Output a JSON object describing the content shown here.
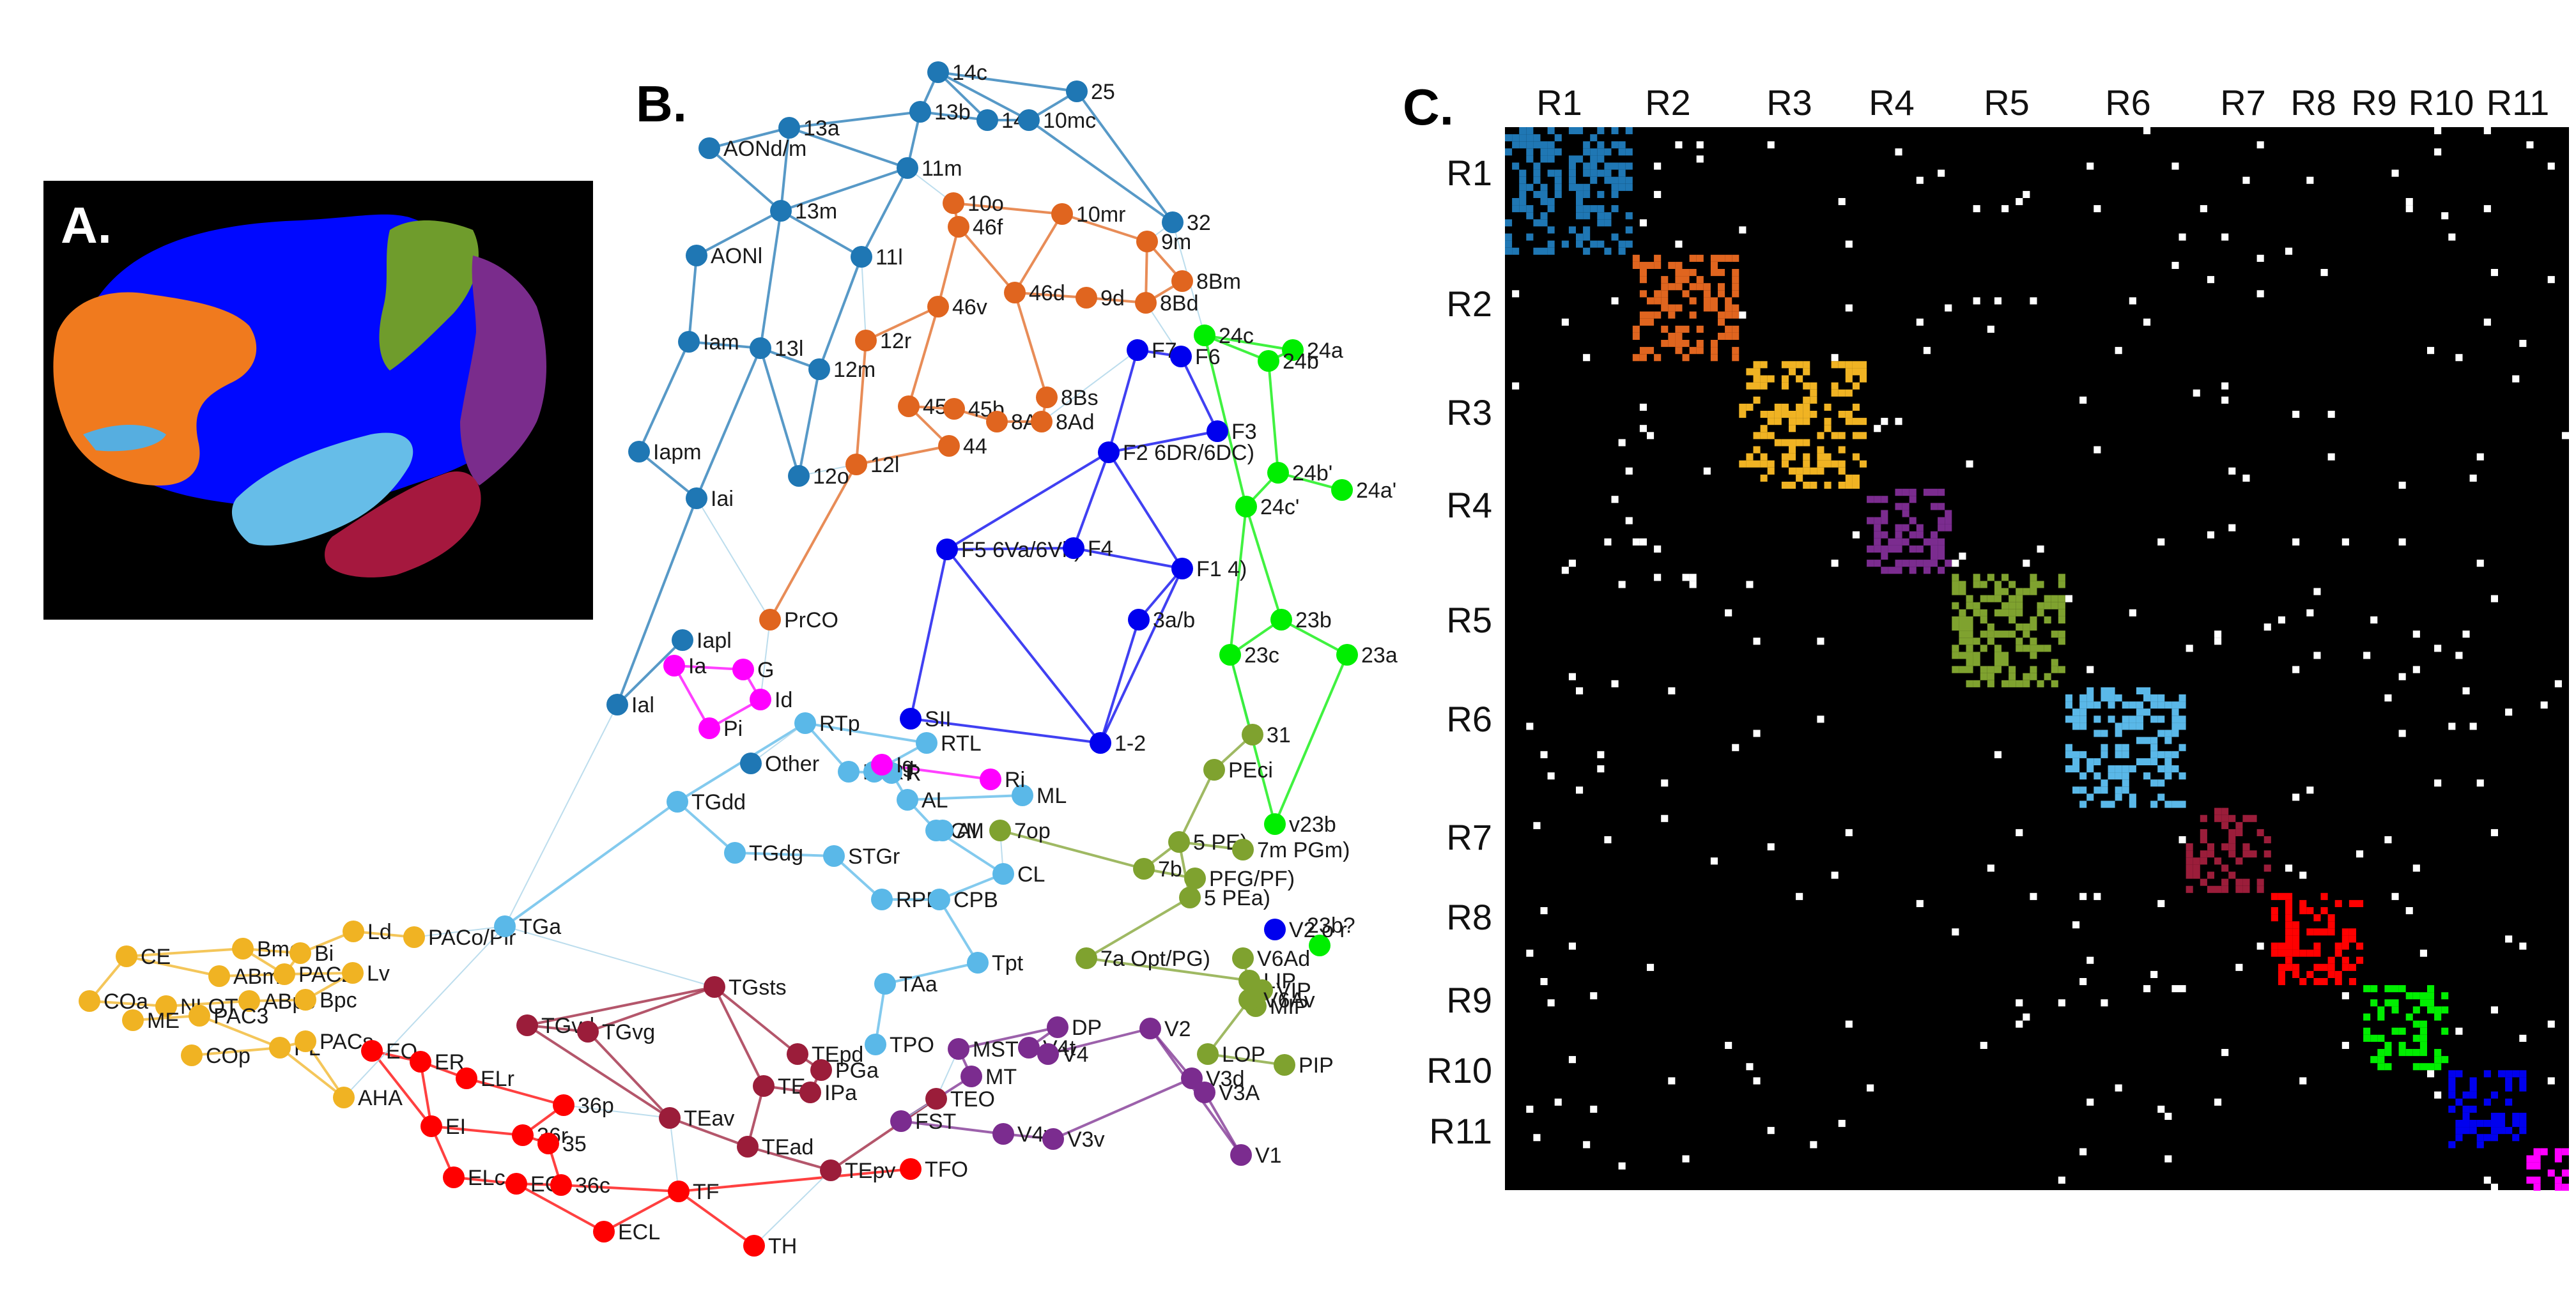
{
  "panels": {
    "a": "A.",
    "b": "B.",
    "c": "C."
  },
  "region_colors": {
    "R1": "#1f77b4",
    "R2": "#e0651f",
    "R3": "#f0b323",
    "R4": "#7b2c8f",
    "R5": "#7fa22f",
    "R6": "#5ab8e8",
    "R7": "#9b1d3a",
    "R8": "#ff0000",
    "R9": "#00ee00",
    "R10": "#0000ee",
    "R11": "#ff00ff"
  },
  "brain_colors": {
    "frontal": "#0008ff",
    "orbital": "#f07a1e",
    "motor": "#6f9c2c",
    "parietal": "#7a2c8c",
    "temporal": "#66bde8",
    "inferior_temporal": "#a5183e",
    "background": "#000000"
  },
  "network": {
    "nodes": [
      {
        "id": "14c",
        "r": "R1"
      },
      {
        "id": "25",
        "r": "R1"
      },
      {
        "id": "13a",
        "r": "R1"
      },
      {
        "id": "13b",
        "r": "R1"
      },
      {
        "id": "14r",
        "r": "R1"
      },
      {
        "id": "10mc",
        "r": "R1"
      },
      {
        "id": "AONd/m",
        "r": "R1"
      },
      {
        "id": "11m",
        "r": "R1"
      },
      {
        "id": "13m",
        "r": "R1"
      },
      {
        "id": "32",
        "r": "R1"
      },
      {
        "id": "AONl",
        "r": "R1"
      },
      {
        "id": "11l",
        "r": "R1"
      },
      {
        "id": "Iam",
        "r": "R1"
      },
      {
        "id": "13l",
        "r": "R1"
      },
      {
        "id": "12m",
        "r": "R1"
      },
      {
        "id": "Iapm",
        "r": "R1"
      },
      {
        "id": "12o",
        "r": "R1"
      },
      {
        "id": "Iai",
        "r": "R1"
      },
      {
        "id": "Iapl",
        "r": "R1"
      },
      {
        "id": "Ial",
        "r": "R1"
      },
      {
        "id": "Other",
        "r": "R1"
      },
      {
        "id": "10o",
        "r": "R2"
      },
      {
        "id": "46f",
        "r": "R2"
      },
      {
        "id": "10mr",
        "r": "R2"
      },
      {
        "id": "9m",
        "r": "R2"
      },
      {
        "id": "8Bm",
        "r": "R2"
      },
      {
        "id": "46v",
        "r": "R2"
      },
      {
        "id": "46d",
        "r": "R2"
      },
      {
        "id": "9d",
        "r": "R2"
      },
      {
        "id": "8Bd",
        "r": "R2"
      },
      {
        "id": "12r",
        "r": "R2"
      },
      {
        "id": "45a",
        "r": "R2"
      },
      {
        "id": "45b",
        "r": "R2"
      },
      {
        "id": "8Av",
        "r": "R2"
      },
      {
        "id": "8Bs",
        "r": "R2"
      },
      {
        "id": "8Ad",
        "r": "R2"
      },
      {
        "id": "44",
        "r": "R2"
      },
      {
        "id": "12l",
        "r": "R2"
      },
      {
        "id": "PrCO",
        "r": "R2"
      },
      {
        "id": "CE",
        "r": "R3"
      },
      {
        "id": "Bmc",
        "r": "R3"
      },
      {
        "id": "Bi",
        "r": "R3"
      },
      {
        "id": "Ld",
        "r": "R3"
      },
      {
        "id": "ABmc",
        "r": "R3"
      },
      {
        "id": "PAC2",
        "r": "R3"
      },
      {
        "id": "Lv",
        "r": "R3"
      },
      {
        "id": "COa",
        "r": "R3"
      },
      {
        "id": "NLOT",
        "r": "R3"
      },
      {
        "id": "ABpc",
        "r": "R3"
      },
      {
        "id": "Bpc",
        "r": "R3"
      },
      {
        "id": "ME",
        "r": "R3"
      },
      {
        "id": "PAC3",
        "r": "R3"
      },
      {
        "id": "PL",
        "r": "R3"
      },
      {
        "id": "PACs",
        "r": "R3"
      },
      {
        "id": "COp",
        "r": "R3"
      },
      {
        "id": "AHA",
        "r": "R3"
      },
      {
        "id": "PACo/Pir",
        "r": "R3"
      },
      {
        "id": "MST",
        "r": "R4"
      },
      {
        "id": "DP",
        "r": "R4"
      },
      {
        "id": "V4t",
        "r": "R4"
      },
      {
        "id": "V4",
        "r": "R4"
      },
      {
        "id": "MT",
        "r": "R4"
      },
      {
        "id": "V2",
        "r": "R4"
      },
      {
        "id": "V3d",
        "r": "R4"
      },
      {
        "id": "V3A",
        "r": "R4"
      },
      {
        "id": "FST",
        "r": "R4"
      },
      {
        "id": "V4v",
        "r": "R4"
      },
      {
        "id": "V3v",
        "r": "R4"
      },
      {
        "id": "V1",
        "r": "R4"
      },
      {
        "id": "7op",
        "r": "R5"
      },
      {
        "id": "7b",
        "r": "R5"
      },
      {
        "id": "PFG/PF)",
        "r": "R5"
      },
      {
        "id": "5 PE)",
        "r": "R5"
      },
      {
        "id": "7m PGm)",
        "r": "R5"
      },
      {
        "id": "5 PEa)",
        "r": "R5"
      },
      {
        "id": "PEci",
        "r": "R5"
      },
      {
        "id": "31",
        "r": "R5"
      },
      {
        "id": "7a Opt/PG)",
        "r": "R5"
      },
      {
        "id": "LIP",
        "r": "R5"
      },
      {
        "id": "VIP",
        "r": "R5"
      },
      {
        "id": "V6Ad",
        "r": "R5"
      },
      {
        "id": "MIP",
        "r": "R5"
      },
      {
        "id": "V6Av",
        "r": "R5"
      },
      {
        "id": "LOP",
        "r": "R5"
      },
      {
        "id": "PIP",
        "r": "R5"
      },
      {
        "id": "RTp",
        "r": "R6"
      },
      {
        "id": "RTL",
        "r": "R6"
      },
      {
        "id": "RM",
        "r": "R6"
      },
      {
        "id": "RT",
        "r": "R6"
      },
      {
        "id": "R",
        "r": "R6"
      },
      {
        "id": "AL",
        "r": "R6"
      },
      {
        "id": "ML",
        "r": "R6"
      },
      {
        "id": "CM",
        "r": "R6"
      },
      {
        "id": "AI",
        "r": "R6"
      },
      {
        "id": "CL",
        "r": "R6"
      },
      {
        "id": "TGdd",
        "r": "R6"
      },
      {
        "id": "TGdg",
        "r": "R6"
      },
      {
        "id": "STGr",
        "r": "R6"
      },
      {
        "id": "RPB",
        "r": "R6"
      },
      {
        "id": "CPB",
        "r": "R6"
      },
      {
        "id": "TGa",
        "r": "R6"
      },
      {
        "id": "TAa",
        "r": "R6"
      },
      {
        "id": "Tpt",
        "r": "R6"
      },
      {
        "id": "TPO",
        "r": "R6"
      },
      {
        "id": "TGsts",
        "r": "R7"
      },
      {
        "id": "TGvd",
        "r": "R7"
      },
      {
        "id": "TGvg",
        "r": "R7"
      },
      {
        "id": "TEpd",
        "r": "R7"
      },
      {
        "id": "PGa",
        "r": "R7"
      },
      {
        "id": "TEa",
        "r": "R7"
      },
      {
        "id": "IPa",
        "r": "R7"
      },
      {
        "id": "TEO",
        "r": "R7"
      },
      {
        "id": "TEav",
        "r": "R7"
      },
      {
        "id": "TEad",
        "r": "R7"
      },
      {
        "id": "TEpv",
        "r": "R7"
      },
      {
        "id": "EO",
        "r": "R8"
      },
      {
        "id": "ER",
        "r": "R8"
      },
      {
        "id": "ELr",
        "r": "R8"
      },
      {
        "id": "36p",
        "r": "R8"
      },
      {
        "id": "EI",
        "r": "R8"
      },
      {
        "id": "36r",
        "r": "R8"
      },
      {
        "id": "35",
        "r": "R8"
      },
      {
        "id": "ELc",
        "r": "R8"
      },
      {
        "id": "EC",
        "r": "R8"
      },
      {
        "id": "36c",
        "r": "R8"
      },
      {
        "id": "TF",
        "r": "R8"
      },
      {
        "id": "ECL",
        "r": "R8"
      },
      {
        "id": "TH",
        "r": "R8"
      },
      {
        "id": "TFO",
        "r": "R8"
      },
      {
        "id": "24c",
        "r": "R9"
      },
      {
        "id": "24a",
        "r": "R9"
      },
      {
        "id": "24b",
        "r": "R9"
      },
      {
        "id": "24b'",
        "r": "R9"
      },
      {
        "id": "24a'",
        "r": "R9"
      },
      {
        "id": "24c'",
        "r": "R9"
      },
      {
        "id": "23b",
        "r": "R9"
      },
      {
        "id": "23c",
        "r": "R9"
      },
      {
        "id": "23a",
        "r": "R9"
      },
      {
        "id": "v23b",
        "r": "R9"
      },
      {
        "id": "23b?",
        "r": "R9"
      },
      {
        "id": "F7",
        "r": "R10"
      },
      {
        "id": "F6",
        "r": "R10"
      },
      {
        "id": "F3",
        "r": "R10"
      },
      {
        "id": "F2 6DR/6DC)",
        "r": "R10"
      },
      {
        "id": "F5 6Va/6Vb)",
        "r": "R10"
      },
      {
        "id": "F4",
        "r": "R10"
      },
      {
        "id": "F1 4)",
        "r": "R10"
      },
      {
        "id": "3a/b",
        "r": "R10"
      },
      {
        "id": "SII",
        "r": "R10"
      },
      {
        "id": "1-2",
        "r": "R10"
      },
      {
        "id": "V2 o r",
        "r": "R10"
      },
      {
        "id": "Ia",
        "r": "R11"
      },
      {
        "id": "G",
        "r": "R11"
      },
      {
        "id": "Id",
        "r": "R11"
      },
      {
        "id": "Pi",
        "r": "R11"
      },
      {
        "id": "Ig",
        "r": "R11"
      },
      {
        "id": "Ri",
        "r": "R11"
      }
    ]
  },
  "matrix": {
    "labels": [
      "R1",
      "R2",
      "R3",
      "R4",
      "R5",
      "R6",
      "R7",
      "R8",
      "R9",
      "R10",
      "R11"
    ],
    "background": "#000000",
    "offdiag_color": "#ffffff"
  }
}
